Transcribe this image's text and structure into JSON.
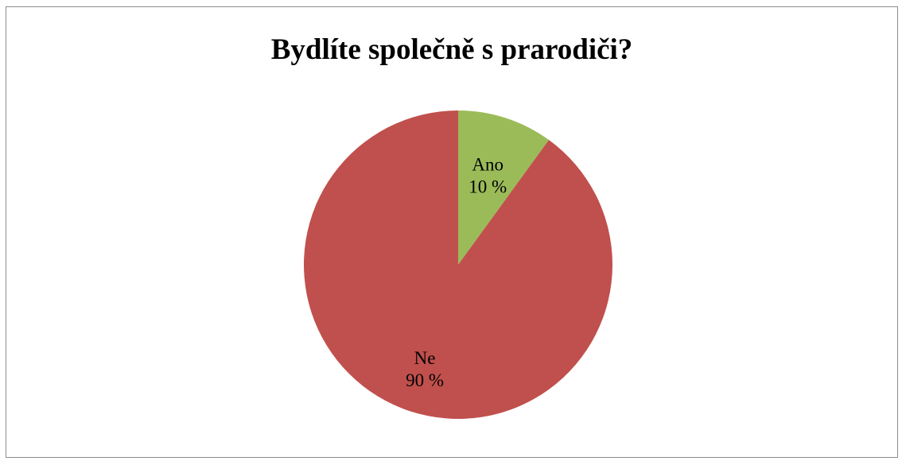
{
  "chart_data": {
    "type": "pie",
    "title": "Bydlíte společně s prarodiči?",
    "slices": [
      {
        "label": "Ano",
        "value": 10,
        "value_label": "10 %",
        "color": "#9bbb59"
      },
      {
        "label": "Ne",
        "value": 90,
        "value_label": "90 %",
        "color": "#c0504d"
      }
    ],
    "start_angle_deg": 0,
    "direction": "clockwise",
    "legend": "none"
  }
}
